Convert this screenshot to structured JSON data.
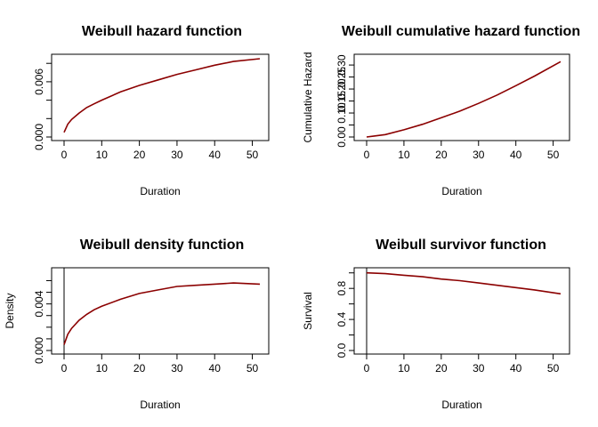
{
  "chart_data": [
    {
      "type": "line",
      "title": "Weibull hazard function",
      "xlabel": "Duration",
      "ylabel": "",
      "xlim": [
        0,
        52
      ],
      "ylim": [
        0.0,
        0.0086
      ],
      "xticks": [
        "0",
        "10",
        "20",
        "30",
        "40",
        "50"
      ],
      "yticks": [
        "0.000",
        "0.006"
      ],
      "ytick_values": [
        0.0,
        0.002,
        0.004,
        0.006,
        0.008
      ],
      "ytick_labels": [
        "0.000",
        "",
        "",
        "0.006",
        ""
      ],
      "grid": false,
      "series": [
        {
          "color": "#8b0000",
          "x": [
            0,
            1,
            2,
            4,
            6,
            8,
            10,
            15,
            20,
            25,
            30,
            35,
            40,
            45,
            52
          ],
          "y": [
            0.0005,
            0.0014,
            0.0019,
            0.0026,
            0.0032,
            0.0036,
            0.004,
            0.0049,
            0.0056,
            0.0062,
            0.0068,
            0.0073,
            0.0078,
            0.0082,
            0.0085
          ]
        }
      ]
    },
    {
      "type": "line",
      "title": "Weibull cumulative hazard function",
      "xlabel": "Duration",
      "ylabel": "Cumulative Hazard",
      "xlim": [
        0,
        52
      ],
      "ylim": [
        0.0,
        0.33
      ],
      "ytick_values": [
        0.0,
        0.05,
        0.1,
        0.15,
        0.2,
        0.25,
        0.3
      ],
      "ytick_labels": [
        "0.00",
        "",
        "0.10",
        "0.15",
        "0.20",
        "0.25",
        "0.30"
      ],
      "xticks": [
        "0",
        "10",
        "20",
        "30",
        "40",
        "50"
      ],
      "grid": false,
      "series": [
        {
          "color": "#8b0000",
          "x": [
            0,
            2,
            5,
            10,
            15,
            20,
            25,
            30,
            35,
            40,
            45,
            52
          ],
          "y": [
            0.0,
            0.004,
            0.01,
            0.03,
            0.053,
            0.08,
            0.108,
            0.14,
            0.175,
            0.214,
            0.254,
            0.314
          ]
        }
      ]
    },
    {
      "type": "line",
      "title": "Weibull density function",
      "xlabel": "Duration",
      "ylabel": "Density",
      "xlim": [
        0,
        52
      ],
      "ylim": [
        0.0,
        0.0068
      ],
      "ytick_values": [
        0.0,
        0.001,
        0.002,
        0.003,
        0.004,
        0.005,
        0.006
      ],
      "ytick_labels": [
        "0.000",
        "",
        "",
        "",
        "0.004",
        "",
        ""
      ],
      "xticks": [
        "0",
        "10",
        "20",
        "30",
        "40",
        "50"
      ],
      "grid": false,
      "series": [
        {
          "color": "#8b0000",
          "x": [
            0,
            1,
            2,
            4,
            6,
            8,
            10,
            15,
            20,
            25,
            30,
            35,
            40,
            45,
            52
          ],
          "y": [
            0.0005,
            0.0014,
            0.0019,
            0.0026,
            0.0031,
            0.0035,
            0.0038,
            0.0044,
            0.0049,
            0.0052,
            0.0055,
            0.0056,
            0.0057,
            0.0058,
            0.0057
          ]
        }
      ]
    },
    {
      "type": "line",
      "title": "Weibull survivor function",
      "xlabel": "Duration",
      "ylabel": "Survival",
      "xlim": [
        0,
        52
      ],
      "ylim": [
        0.0,
        1.02
      ],
      "ytick_values": [
        0.0,
        0.2,
        0.4,
        0.6,
        0.8,
        1.0
      ],
      "ytick_labels": [
        "0.0",
        "",
        "0.4",
        "",
        "0.8",
        ""
      ],
      "xticks": [
        "0",
        "10",
        "20",
        "30",
        "40",
        "50"
      ],
      "grid": false,
      "series": [
        {
          "color": "#8b0000",
          "x": [
            0,
            5,
            10,
            15,
            20,
            25,
            30,
            35,
            40,
            45,
            52
          ],
          "y": [
            1.0,
            0.99,
            0.97,
            0.95,
            0.92,
            0.9,
            0.87,
            0.84,
            0.81,
            0.78,
            0.73
          ]
        }
      ]
    }
  ]
}
